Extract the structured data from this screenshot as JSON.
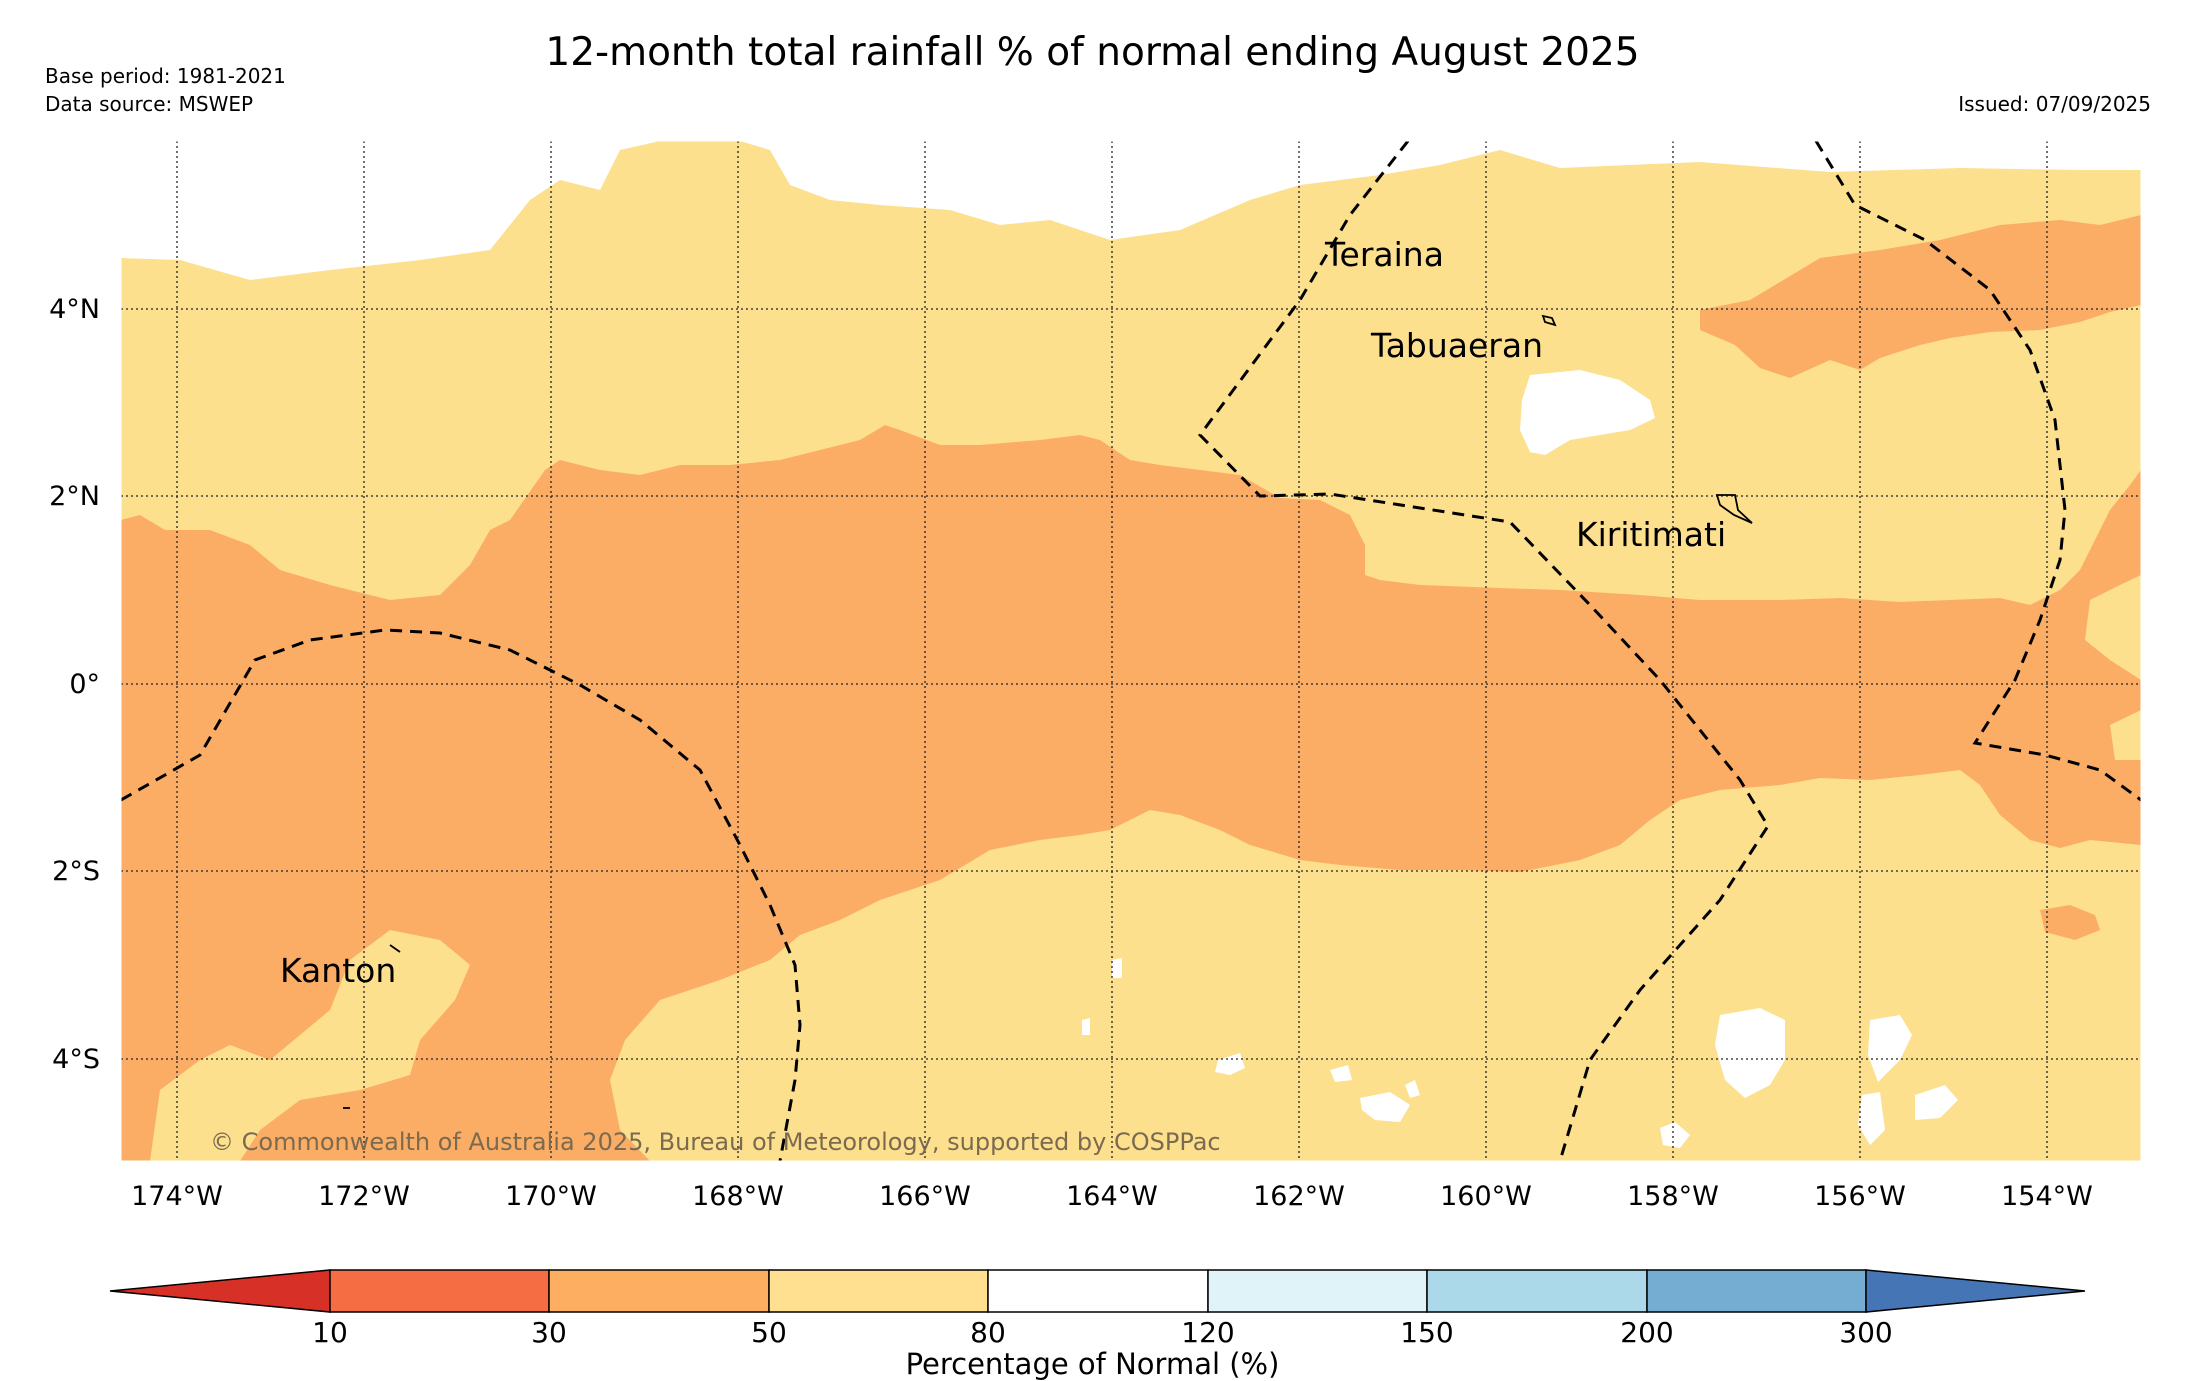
{
  "title": "12-month total rainfall % of normal ending August 2025",
  "base_period": "Base period: 1981-2021",
  "data_source": "Data source: MSWEP",
  "issued": "Issued: 07/09/2025",
  "map": {
    "lat_labels": [
      "4°N",
      "2°N",
      "0°",
      "2°S",
      "4°S"
    ],
    "lon_labels": [
      "174°W",
      "172°W",
      "170°W",
      "168°W",
      "166°W",
      "164°W",
      "162°W",
      "160°W",
      "158°W",
      "156°W",
      "154°W"
    ],
    "places": [
      {
        "name": "Teraina"
      },
      {
        "name": "Tabuaeran"
      },
      {
        "name": "Kiritimati"
      },
      {
        "name": "Kanton"
      }
    ],
    "copyright": "© Commonwealth of Australia 2025, Bureau of Meteorology, supported by COSPPac",
    "colors": {
      "band_30_50": "#fbad66",
      "band_50_80": "#fde08e",
      "band_80_120": "#ffffff"
    }
  },
  "colorbar": {
    "title": "Percentage of Normal (%)",
    "ticks": [
      "10",
      "30",
      "50",
      "80",
      "120",
      "150",
      "200",
      "300"
    ],
    "colors": [
      "#d73027",
      "#f46d43",
      "#fdae61",
      "#fee090",
      "#ffffff",
      "#e0f3f8",
      "#abd9e9",
      "#74add1",
      "#4575b4"
    ]
  }
}
